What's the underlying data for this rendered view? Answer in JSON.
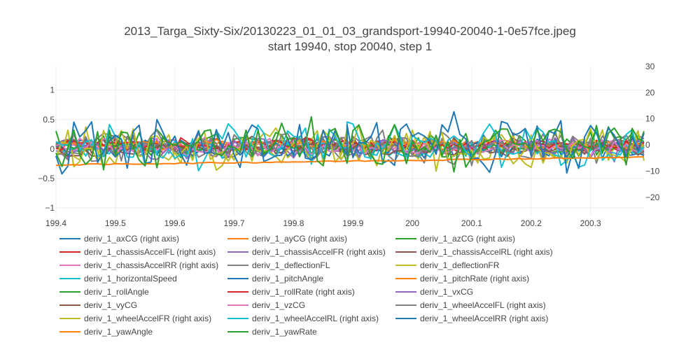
{
  "chart_data": {
    "type": "line",
    "title": "2013_Targa_Sixty-Six/20130223_01_01_03_grandsport-19940-20040-1-0e57fce.jpeg",
    "subtitle": "start 19940, stop 20040, step 1",
    "x_range": [
      199.4,
      200.39
    ],
    "y_left_range": [
      -1.13,
      1.4
    ],
    "y_right_range": [
      -27,
      30
    ],
    "x_ticks": [
      "199.4",
      "199.5",
      "199.6",
      "199.7",
      "199.8",
      "199.9",
      "200",
      "200.1",
      "200.2",
      "200.3"
    ],
    "y_left_ticks": [
      "1",
      "0.5",
      "0",
      "−0.5",
      "−1"
    ],
    "y_right_ticks": [
      "30",
      "20",
      "10",
      "0",
      "−10",
      "−20"
    ],
    "grid": true,
    "legend_position": "bottom",
    "series": [
      {
        "name": "deriv_1_axCG (right axis)",
        "axis": "right",
        "color": "#1f77b4",
        "amp": 4,
        "mean": 0
      },
      {
        "name": "deriv_1_ayCG (right axis)",
        "axis": "right",
        "color": "#ff7f0e",
        "amp": 2,
        "mean": 0
      },
      {
        "name": "deriv_1_azCG (right axis)",
        "axis": "right",
        "color": "#2ca02c",
        "amp": 6,
        "mean": 0
      },
      {
        "name": "deriv_1_chassisAccelFL (right axis)",
        "axis": "right",
        "color": "#d62728",
        "amp": 3,
        "mean": 0
      },
      {
        "name": "deriv_1_chassisAccelFR (right axis)",
        "axis": "right",
        "color": "#9467bd",
        "amp": 3,
        "mean": 0
      },
      {
        "name": "deriv_1_chassisAccelRL (right axis)",
        "axis": "right",
        "color": "#8c564b",
        "amp": 3,
        "mean": 0
      },
      {
        "name": "deriv_1_chassisAccelRR (right axis)",
        "axis": "right",
        "color": "#e377c2",
        "amp": 3,
        "mean": 0
      },
      {
        "name": "deriv_1_deflectionFL",
        "axis": "left",
        "color": "#7f7f7f",
        "amp": 0.3,
        "mean": 0
      },
      {
        "name": "deriv_1_deflectionFR",
        "axis": "left",
        "color": "#bcbd22",
        "amp": 0.35,
        "mean": 0
      },
      {
        "name": "deriv_1_horizontalSpeed",
        "axis": "left",
        "color": "#17becf",
        "amp": 0.15,
        "mean": 0
      },
      {
        "name": "deriv_1_pitchAngle",
        "axis": "left",
        "color": "#1f77b4",
        "amp": 0.15,
        "mean": 0
      },
      {
        "name": "deriv_1_pitchRate (right axis)",
        "axis": "right",
        "color": "#ff7f0e",
        "amp": 2,
        "mean": 0
      },
      {
        "name": "deriv_1_rollAngle",
        "axis": "left",
        "color": "#2ca02c",
        "amp": 0.1,
        "mean": 0
      },
      {
        "name": "deriv_1_rollRate (right axis)",
        "axis": "right",
        "color": "#d62728",
        "amp": 2,
        "mean": 0
      },
      {
        "name": "deriv_1_vxCG",
        "axis": "left",
        "color": "#9467bd",
        "amp": 0.2,
        "mean": 0
      },
      {
        "name": "deriv_1_vyCG",
        "axis": "left",
        "color": "#8c564b",
        "amp": 0.12,
        "mean": 0
      },
      {
        "name": "deriv_1_vzCG",
        "axis": "left",
        "color": "#e377c2",
        "amp": 0.12,
        "mean": 0
      },
      {
        "name": "deriv_1_wheelAccelFL (right axis)",
        "axis": "right",
        "color": "#7f7f7f",
        "amp": 5,
        "mean": 0
      },
      {
        "name": "deriv_1_wheelAccelFR (right axis)",
        "axis": "right",
        "color": "#bcbd22",
        "amp": 7,
        "mean": 0
      },
      {
        "name": "deriv_1_wheelAccelRL (right axis)",
        "axis": "right",
        "color": "#17becf",
        "amp": 9,
        "mean": 0
      },
      {
        "name": "deriv_1_wheelAccelRR (right axis)",
        "axis": "right",
        "color": "#1f77b4",
        "amp": 11,
        "mean": 0
      },
      {
        "name": "deriv_1_yawAngle",
        "axis": "left",
        "color": "#ff7f0e",
        "amp": 0.02,
        "mean": -0.2,
        "trend": [
          -0.27,
          -0.14
        ]
      },
      {
        "name": "deriv_1_yawRate",
        "axis": "right",
        "color": "#2ca02c",
        "amp": 10,
        "mean": 0
      }
    ]
  }
}
